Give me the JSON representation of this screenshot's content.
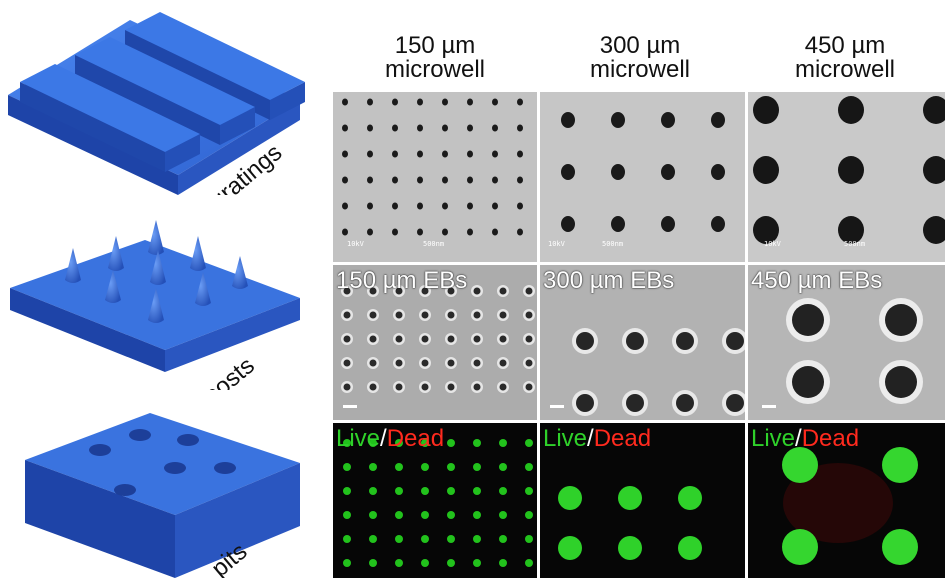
{
  "schematics": {
    "gratings_label": "gratings",
    "posts_label": "posts",
    "pits_label": "pits"
  },
  "columns": [
    {
      "size": "150 µm",
      "type": "microwell"
    },
    {
      "size": "300 µm",
      "type": "microwell"
    },
    {
      "size": "450 µm",
      "type": "microwell"
    }
  ],
  "eb_labels": [
    "150 µm EBs",
    "300 µm EBs",
    "450 µm EBs"
  ],
  "stain": {
    "live": "Live",
    "separator": "/",
    "dead": "Dead"
  },
  "sem_annotations": [
    {
      "mag": "10kV",
      "bar": "500nm"
    },
    {
      "mag": "10kV",
      "bar": "500nm"
    },
    {
      "mag": "10kV",
      "bar": "500nm"
    }
  ],
  "colors": {
    "schematic_blue": "#3a73df",
    "live_green": "#2fd12a",
    "dead_red": "#ff2a1e"
  }
}
